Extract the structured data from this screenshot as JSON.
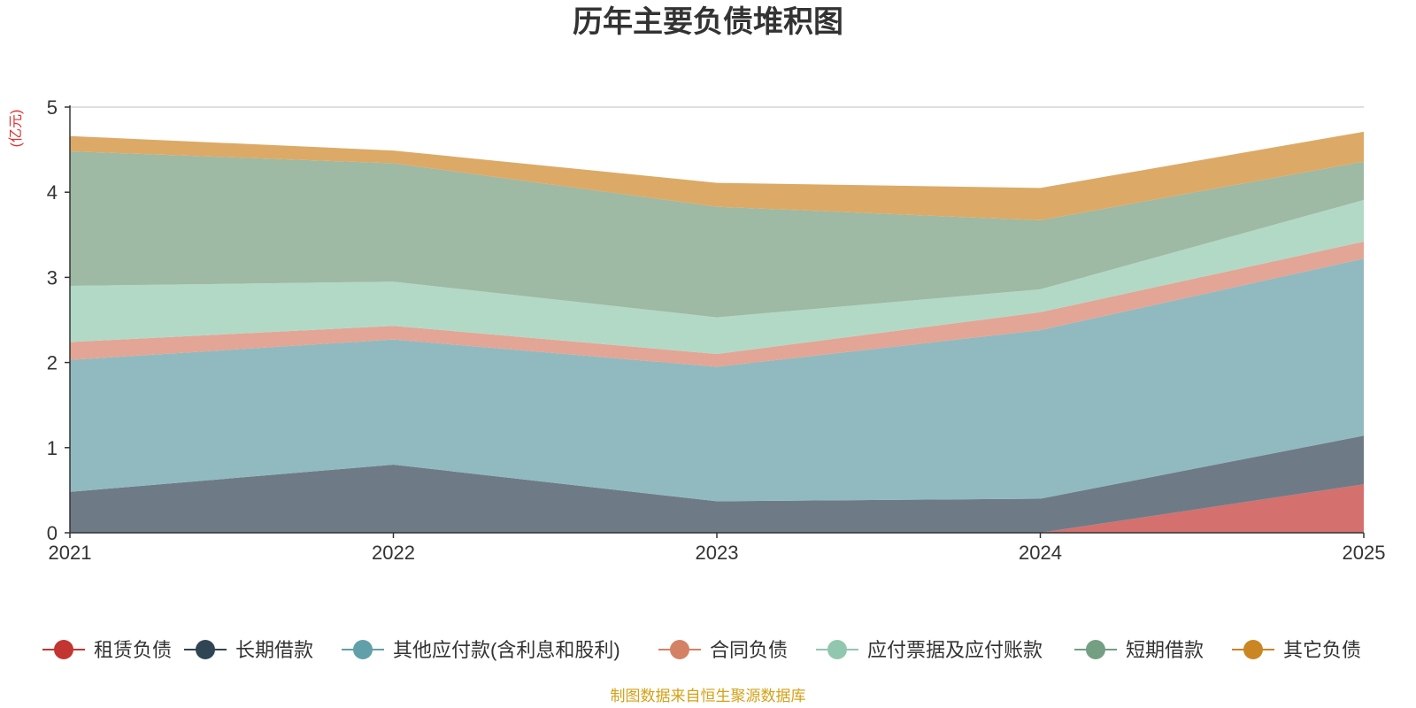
{
  "chart_data": {
    "type": "area",
    "stacked": true,
    "title": "历年主要负债堆积图",
    "unit_label": "(亿元)",
    "source": "制图数据来自恒生聚源数据库",
    "categories": [
      "2021",
      "2022",
      "2023",
      "2024",
      "2025"
    ],
    "ylim": [
      0,
      5
    ],
    "yticks": [
      0,
      1,
      2,
      3,
      4,
      5
    ],
    "grid": true,
    "legend_position": "bottom",
    "series": [
      {
        "name": "租赁负债",
        "color": "#c23531",
        "fill": "#d4706e",
        "values": [
          0,
          0,
          0,
          0,
          0.57
        ]
      },
      {
        "name": "长期借款",
        "color": "#2f4554",
        "fill": "#6e7b87",
        "values": [
          0.48,
          0.8,
          0.37,
          0.4,
          0.57
        ]
      },
      {
        "name": "其他应付款(含利息和股利)",
        "color": "#61a0a8",
        "fill": "#90babf",
        "values": [
          1.55,
          1.47,
          1.58,
          1.98,
          2.08
        ]
      },
      {
        "name": "合同负债",
        "color": "#d48265",
        "fill": "#e3a595",
        "values": [
          0.21,
          0.16,
          0.15,
          0.21,
          0.2
        ]
      },
      {
        "name": "应付票据及应付账款",
        "color": "#91c7ae",
        "fill": "#b2d9c6",
        "values": [
          0.66,
          0.52,
          0.43,
          0.27,
          0.49
        ]
      },
      {
        "name": "短期借款",
        "color": "#749f83",
        "fill": "#9eb9a4",
        "values": [
          1.58,
          1.39,
          1.3,
          0.81,
          0.45
        ]
      },
      {
        "name": "其它负债",
        "color": "#ca8622",
        "fill": "#dcaa66",
        "values": [
          0.18,
          0.15,
          0.28,
          0.38,
          0.35
        ]
      }
    ]
  }
}
